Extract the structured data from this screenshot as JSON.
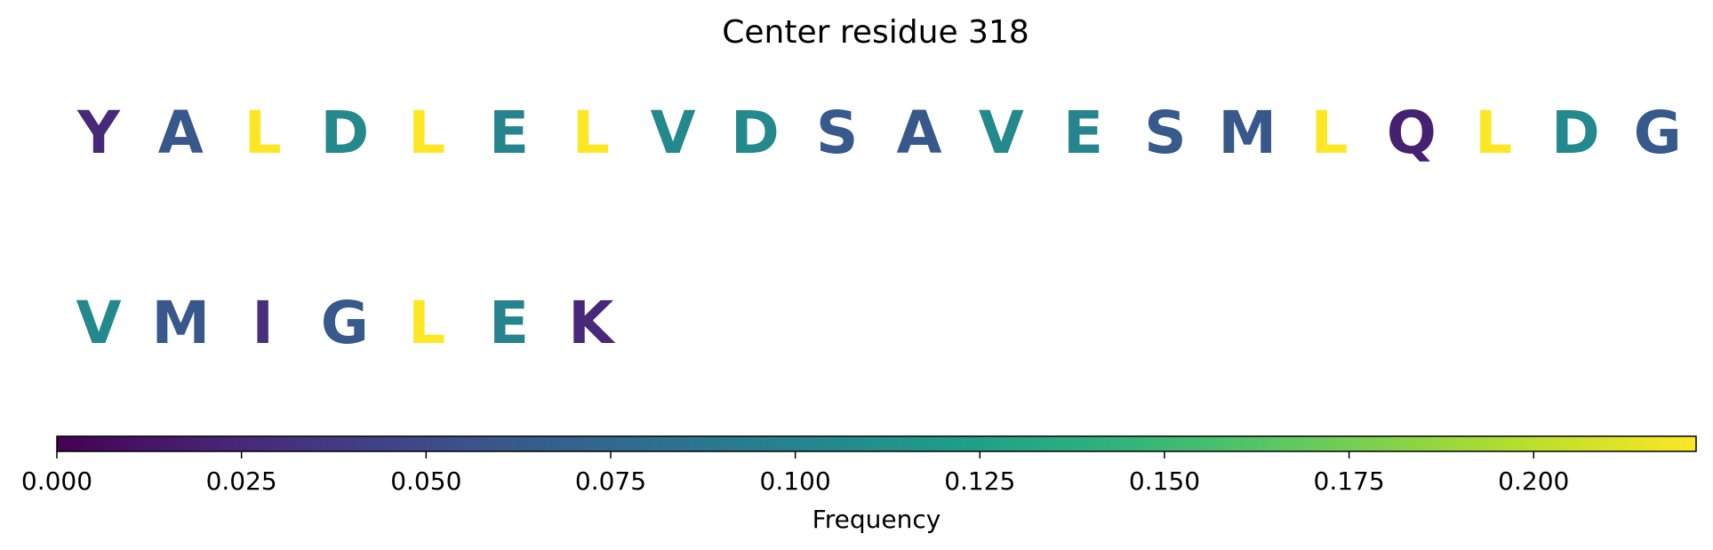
{
  "chart_data": {
    "type": "heatmap",
    "title": "Center residue 318",
    "rows": [
      {
        "residues": [
          "Y",
          "A",
          "L",
          "D",
          "L",
          "E",
          "L",
          "V",
          "D",
          "S",
          "A",
          "V",
          "E",
          "S",
          "M",
          "L",
          "Q",
          "L",
          "D",
          "G"
        ],
        "frequencies": [
          0.025,
          0.06,
          0.222,
          0.105,
          0.222,
          0.1,
          0.222,
          0.105,
          0.105,
          0.062,
          0.06,
          0.105,
          0.1,
          0.062,
          0.06,
          0.222,
          0.02,
          0.222,
          0.105,
          0.062
        ]
      },
      {
        "residues": [
          "V",
          "M",
          "I",
          "G",
          "L",
          "E",
          "K"
        ],
        "frequencies": [
          0.105,
          0.06,
          0.03,
          0.062,
          0.222,
          0.1,
          0.025
        ]
      }
    ],
    "colorbar": {
      "label": "Frequency",
      "min": 0.0,
      "max": 0.222,
      "ticks": [
        0.0,
        0.025,
        0.05,
        0.075,
        0.1,
        0.125,
        0.15,
        0.175,
        0.2
      ],
      "tick_labels": [
        "0.000",
        "0.025",
        "0.050",
        "0.075",
        "0.100",
        "0.125",
        "0.150",
        "0.175",
        "0.200"
      ],
      "colormap": "viridis"
    }
  }
}
